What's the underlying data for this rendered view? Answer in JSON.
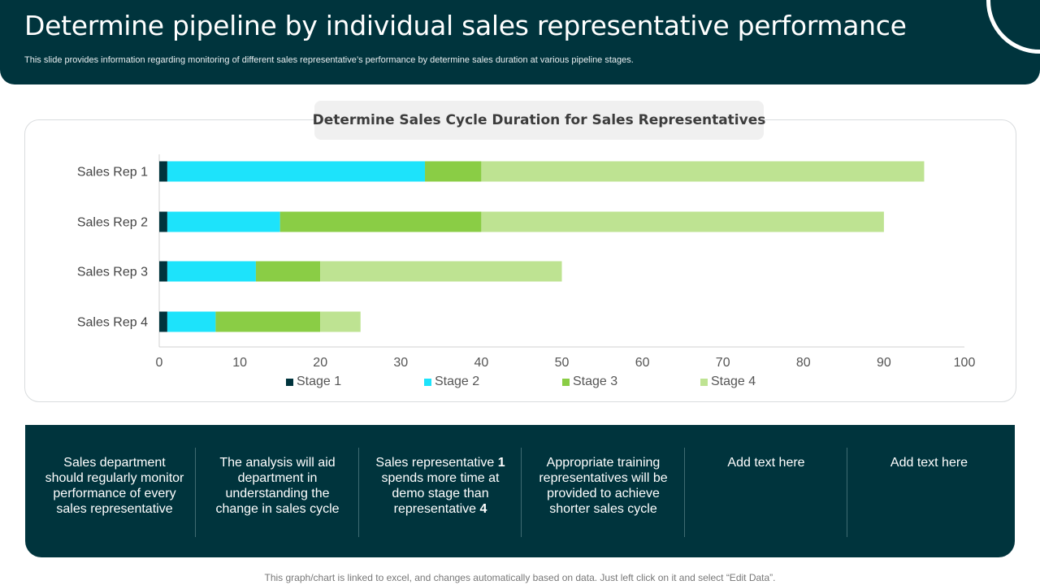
{
  "header": {
    "title": "Determine pipeline by individual sales representative performance",
    "subtitle": "This slide provides information regarding monitoring of different sales representative’s performance by determine sales duration at various pipeline stages."
  },
  "chart_data": {
    "type": "bar",
    "orientation": "horizontal",
    "stacked": true,
    "title": "Determine Sales Cycle Duration for Sales Representatives",
    "categories": [
      "Sales Rep 1",
      "Sales Rep 2",
      "Sales Rep 3",
      "Sales Rep 4"
    ],
    "series": [
      {
        "name": "Stage 1",
        "color": "#00343d",
        "values": [
          1,
          1,
          1,
          1
        ]
      },
      {
        "name": "Stage 2",
        "color": "#1de3fb",
        "values": [
          32,
          14,
          11,
          6
        ]
      },
      {
        "name": "Stage 3",
        "color": "#8acd45",
        "values": [
          7,
          25,
          8,
          13
        ]
      },
      {
        "name": "Stage 4",
        "color": "#bee392",
        "values": [
          55,
          50,
          30,
          5
        ]
      }
    ],
    "xlim": [
      0,
      100
    ],
    "xticks": [
      0,
      10,
      20,
      30,
      40,
      50,
      60,
      70,
      80,
      90,
      100
    ],
    "xlabel": "",
    "ylabel": "",
    "legend_position": "bottom",
    "grid": false
  },
  "notes": [
    {
      "parts": [
        {
          "text": "Sales department should regularly monitor performance of every sales representative",
          "bold": false
        }
      ]
    },
    {
      "parts": [
        {
          "text": "The analysis will aid department in understanding the change in sales cycle",
          "bold": false
        }
      ]
    },
    {
      "parts": [
        {
          "text": "Sales representative ",
          "bold": false
        },
        {
          "text": "1",
          "bold": true
        },
        {
          "text": " spends more time at demo stage than representative ",
          "bold": false
        },
        {
          "text": "4",
          "bold": true
        }
      ]
    },
    {
      "parts": [
        {
          "text": "Appropriate training representatives will be provided to achieve shorter sales cycle",
          "bold": false
        }
      ]
    },
    {
      "parts": [
        {
          "text": "Add text here",
          "bold": false
        }
      ]
    },
    {
      "parts": [
        {
          "text": "Add text here",
          "bold": false
        }
      ]
    }
  ],
  "footer_note": "This graph/chart is linked to excel, and changes automatically based on data. Just left click on it and select “Edit Data”."
}
